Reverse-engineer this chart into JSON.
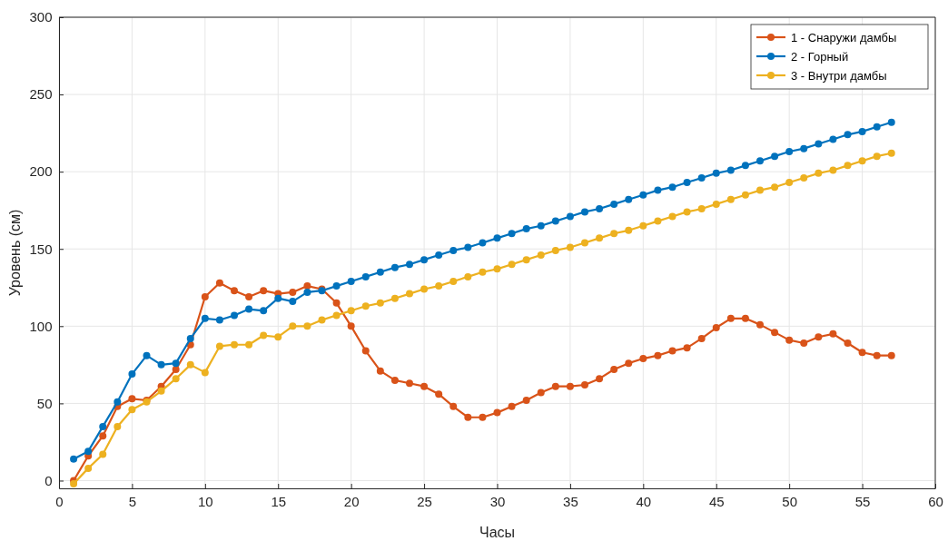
{
  "chart_data": {
    "type": "line",
    "xlabel": "Часы",
    "ylabel": "Уровень (см)",
    "x": [
      1,
      2,
      3,
      4,
      5,
      6,
      7,
      8,
      9,
      10,
      11,
      12,
      13,
      14,
      15,
      16,
      17,
      18,
      19,
      20,
      21,
      22,
      23,
      24,
      25,
      26,
      27,
      28,
      29,
      30,
      31,
      32,
      33,
      34,
      35,
      36,
      37,
      38,
      39,
      40,
      41,
      42,
      43,
      44,
      45,
      46,
      47,
      48,
      49,
      50,
      51,
      52,
      53,
      54,
      55,
      56,
      57
    ],
    "series": [
      {
        "name": "1 - Снаружи дамбы",
        "color": "#d95319",
        "values": [
          0,
          16,
          29,
          48,
          53,
          52,
          61,
          72,
          88,
          119,
          128,
          123,
          119,
          123,
          121,
          122,
          126,
          124,
          115,
          100,
          84,
          71,
          65,
          63,
          61,
          56,
          48,
          41,
          41,
          44,
          48,
          52,
          57,
          61,
          61,
          62,
          66,
          72,
          76,
          79,
          81,
          84,
          86,
          92,
          99,
          105,
          105,
          101,
          96,
          91,
          89,
          93,
          95,
          89,
          83,
          81,
          81
        ]
      },
      {
        "name": "2 - Горный",
        "color": "#0072bd",
        "values": [
          14,
          19,
          35,
          51,
          69,
          81,
          75,
          76,
          92,
          105,
          104,
          107,
          111,
          110,
          118,
          116,
          122,
          123,
          126,
          129,
          132,
          135,
          138,
          140,
          143,
          146,
          149,
          151,
          154,
          157,
          160,
          163,
          165,
          168,
          171,
          174,
          176,
          179,
          182,
          185,
          188,
          190,
          193,
          196,
          199,
          201,
          204,
          207,
          210,
          213,
          215,
          218,
          221,
          224,
          226,
          229,
          232
        ]
      },
      {
        "name": "3 - Внутри дамбы",
        "color": "#edb120",
        "values": [
          -2,
          8,
          17,
          35,
          46,
          51,
          58,
          66,
          75,
          70,
          87,
          88,
          88,
          94,
          93,
          100,
          100,
          104,
          107,
          110,
          113,
          115,
          118,
          121,
          124,
          126,
          129,
          132,
          135,
          137,
          140,
          143,
          146,
          149,
          151,
          154,
          157,
          160,
          162,
          165,
          168,
          171,
          174,
          176,
          179,
          182,
          185,
          188,
          190,
          193,
          196,
          199,
          201,
          204,
          207,
          210,
          212
        ]
      }
    ],
    "xlim": [
      0,
      60
    ],
    "xticks": [
      0,
      5,
      10,
      15,
      20,
      25,
      30,
      35,
      40,
      45,
      50,
      55,
      60
    ],
    "ylim": [
      -5,
      300
    ],
    "yticks": [
      0,
      50,
      100,
      150,
      200,
      250,
      300
    ],
    "grid": true,
    "legend": "top right",
    "marker": "circle",
    "line_style": "solid"
  }
}
